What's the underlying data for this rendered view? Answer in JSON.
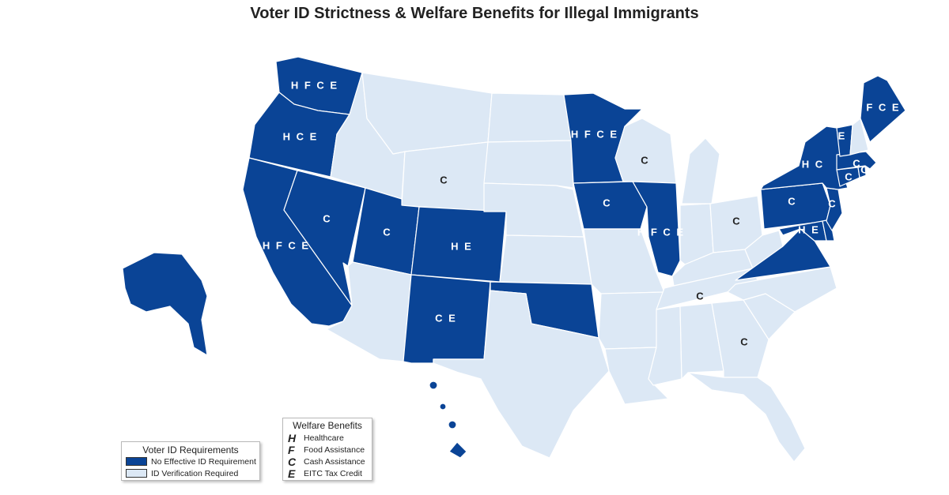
{
  "title": "Voter ID Strictness & Welfare Benefits for Illegal Immigrants",
  "colors": {
    "no_id": "#0a4496",
    "id_required": "#dce8f5",
    "label_dark": "#ffffff",
    "label_light": "#222222"
  },
  "voter_legend": {
    "title": "Voter ID Requirements",
    "items": [
      {
        "label": "No Effective ID Requirement",
        "color": "#0a4496"
      },
      {
        "label": "ID Verification Required",
        "color": "#dce8f5"
      }
    ]
  },
  "welfare_legend": {
    "title": "Welfare Benefits",
    "items": [
      {
        "letter": "H",
        "label": "Healthcare"
      },
      {
        "letter": "F",
        "label": "Food Assistance"
      },
      {
        "letter": "C",
        "label": "Cash Assistance"
      },
      {
        "letter": "E",
        "label": "EITC Tax Credit"
      }
    ]
  },
  "states": [
    {
      "id": "WA",
      "no_id": true,
      "benefits": "HFCE"
    },
    {
      "id": "OR",
      "no_id": true,
      "benefits": "HCE"
    },
    {
      "id": "CA",
      "no_id": true,
      "benefits": "HFCE"
    },
    {
      "id": "NV",
      "no_id": true,
      "benefits": "C"
    },
    {
      "id": "UT",
      "no_id": true,
      "benefits": "C"
    },
    {
      "id": "CO",
      "no_id": true,
      "benefits": "HE"
    },
    {
      "id": "NM",
      "no_id": true,
      "benefits": "CE"
    },
    {
      "id": "OK",
      "no_id": true,
      "benefits": ""
    },
    {
      "id": "MN",
      "no_id": true,
      "benefits": "HFCE"
    },
    {
      "id": "IA",
      "no_id": true,
      "benefits": "C"
    },
    {
      "id": "IL",
      "no_id": true,
      "benefits": "HFCE"
    },
    {
      "id": "NY",
      "no_id": true,
      "benefits": "HC"
    },
    {
      "id": "PA",
      "no_id": true,
      "benefits": "C"
    },
    {
      "id": "NJ",
      "no_id": true,
      "benefits": "C"
    },
    {
      "id": "DE",
      "no_id": true,
      "benefits": ""
    },
    {
      "id": "MD",
      "no_id": true,
      "benefits": "HE"
    },
    {
      "id": "VA",
      "no_id": true,
      "benefits": ""
    },
    {
      "id": "VT",
      "no_id": true,
      "benefits": "E"
    },
    {
      "id": "ME",
      "no_id": true,
      "benefits": "FCE"
    },
    {
      "id": "MA",
      "no_id": true,
      "benefits": "C"
    },
    {
      "id": "RI",
      "no_id": true,
      "benefits": "C"
    },
    {
      "id": "CT",
      "no_id": true,
      "benefits": "C"
    },
    {
      "id": "AK",
      "no_id": true,
      "benefits": ""
    },
    {
      "id": "HI",
      "no_id": true,
      "benefits": ""
    },
    {
      "id": "WY",
      "no_id": false,
      "benefits": "C"
    },
    {
      "id": "WI",
      "no_id": false,
      "benefits": "C"
    },
    {
      "id": "OH",
      "no_id": false,
      "benefits": "C"
    },
    {
      "id": "TN",
      "no_id": false,
      "benefits": "C"
    },
    {
      "id": "GA",
      "no_id": false,
      "benefits": "C"
    },
    {
      "id": "ID",
      "no_id": false,
      "benefits": ""
    },
    {
      "id": "MT",
      "no_id": false,
      "benefits": ""
    },
    {
      "id": "ND",
      "no_id": false,
      "benefits": ""
    },
    {
      "id": "SD",
      "no_id": false,
      "benefits": ""
    },
    {
      "id": "NE",
      "no_id": false,
      "benefits": ""
    },
    {
      "id": "KS",
      "no_id": false,
      "benefits": ""
    },
    {
      "id": "AZ",
      "no_id": false,
      "benefits": ""
    },
    {
      "id": "TX",
      "no_id": false,
      "benefits": ""
    },
    {
      "id": "MO",
      "no_id": false,
      "benefits": ""
    },
    {
      "id": "AR",
      "no_id": false,
      "benefits": ""
    },
    {
      "id": "LA",
      "no_id": false,
      "benefits": ""
    },
    {
      "id": "MS",
      "no_id": false,
      "benefits": ""
    },
    {
      "id": "AL",
      "no_id": false,
      "benefits": ""
    },
    {
      "id": "FL",
      "no_id": false,
      "benefits": ""
    },
    {
      "id": "SC",
      "no_id": false,
      "benefits": ""
    },
    {
      "id": "NC",
      "no_id": false,
      "benefits": ""
    },
    {
      "id": "KY",
      "no_id": false,
      "benefits": ""
    },
    {
      "id": "IN",
      "no_id": false,
      "benefits": ""
    },
    {
      "id": "MI",
      "no_id": false,
      "benefits": ""
    },
    {
      "id": "WV",
      "no_id": false,
      "benefits": ""
    },
    {
      "id": "NH",
      "no_id": false,
      "benefits": ""
    }
  ]
}
